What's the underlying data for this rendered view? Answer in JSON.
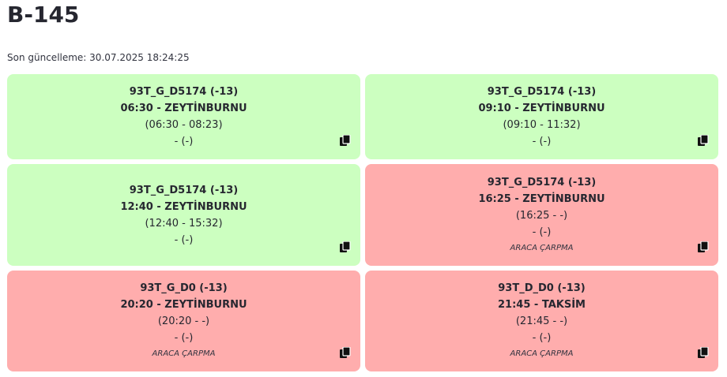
{
  "page": {
    "title": "B-145",
    "last_updated": "Son güncelleme: 30.07.2025 18:24:25"
  },
  "cards": [
    {
      "status": "ok",
      "route": "93T_G_D5174 (-13)",
      "departure": "06:30 - ZEYTİNBURNU",
      "time_range": "(06:30 - 08:23)",
      "extra": "- (-)",
      "note": ""
    },
    {
      "status": "ok",
      "route": "93T_G_D5174 (-13)",
      "departure": "09:10 - ZEYTİNBURNU",
      "time_range": "(09:10 - 11:32)",
      "extra": "- (-)",
      "note": ""
    },
    {
      "status": "ok",
      "route": "93T_G_D5174 (-13)",
      "departure": "12:40 - ZEYTİNBURNU",
      "time_range": "(12:40 - 15:32)",
      "extra": "- (-)",
      "note": ""
    },
    {
      "status": "fail",
      "route": "93T_G_D5174 (-13)",
      "departure": "16:25 - ZEYTİNBURNU",
      "time_range": "(16:25 - -)",
      "extra": "- (-)",
      "note": "ARACA ÇARPMA"
    },
    {
      "status": "fail",
      "route": "93T_G_D0 (-13)",
      "departure": "20:20 - ZEYTİNBURNU",
      "time_range": "(20:20 - -)",
      "extra": "- (-)",
      "note": "ARACA ÇARPMA"
    },
    {
      "status": "fail",
      "route": "93T_D_D0 (-13)",
      "departure": "21:45 - TAKSİM",
      "time_range": "(21:45 - -)",
      "extra": "- (-)",
      "note": "ARACA ÇARPMA"
    }
  ],
  "colors": {
    "ok_background": "#ccffc0",
    "fail_background": "#ffadad"
  },
  "icons": {
    "copy": "copy-icon"
  }
}
